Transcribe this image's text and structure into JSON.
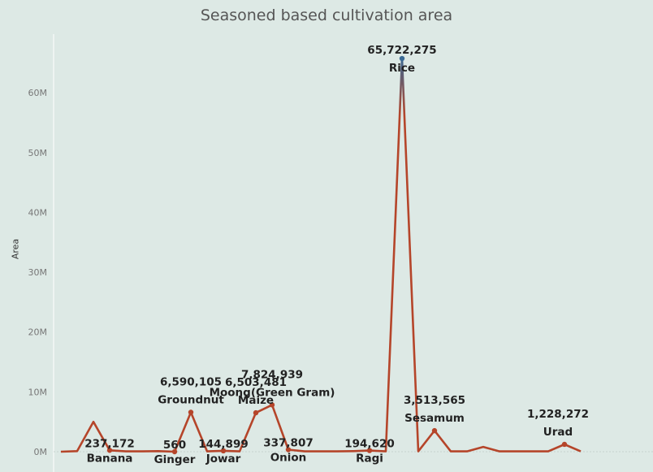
{
  "chart_data": {
    "type": "line",
    "title": "Seasoned based cultivation area",
    "ylabel": "Area",
    "xlabel": "",
    "ylim": [
      0,
      66000000
    ],
    "y_ticks": [
      {
        "value": 0,
        "label": "0M"
      },
      {
        "value": 10000000,
        "label": "10M"
      },
      {
        "value": 20000000,
        "label": "20M"
      },
      {
        "value": 30000000,
        "label": "30M"
      },
      {
        "value": 40000000,
        "label": "40M"
      },
      {
        "value": 50000000,
        "label": "50M"
      },
      {
        "value": 60000000,
        "label": "60M"
      }
    ],
    "grid": false,
    "colors": {
      "low": "#b5452a",
      "high": "#3a6a94"
    },
    "values": [
      0,
      100000,
      5000000,
      237172,
      50000,
      50000,
      100000,
      560,
      6590105,
      50000,
      144899,
      50000,
      6503481,
      7824939,
      337807,
      50000,
      50000,
      50000,
      100000,
      194620,
      50000,
      65722275,
      50000,
      3513565,
      50000,
      50000,
      800000,
      50000,
      50000,
      50000,
      50000,
      1228272,
      50000
    ],
    "labeled_points": [
      {
        "index": 3,
        "value_label": "237,172",
        "crop": "Banana"
      },
      {
        "index": 7,
        "value_label": "560",
        "crop": "Ginger"
      },
      {
        "index": 8,
        "value_label": "6,590,105",
        "crop": "Groundnut"
      },
      {
        "index": 10,
        "value_label": "144,899",
        "crop": "Jowar"
      },
      {
        "index": 12,
        "value_label": "6,503,481",
        "crop": "Maize"
      },
      {
        "index": 13,
        "value_label": "7,824,939",
        "crop": "Moong(Green Gram)"
      },
      {
        "index": 14,
        "value_label": "337,807",
        "crop": "Onion"
      },
      {
        "index": 19,
        "value_label": "194,620",
        "crop": "Ragi"
      },
      {
        "index": 21,
        "value_label": "65,722,275",
        "crop": "Rice"
      },
      {
        "index": 23,
        "value_label": "3,513,565",
        "crop": "Sesamum"
      },
      {
        "index": 31,
        "value_label": "1,228,272",
        "crop": "Urad"
      }
    ]
  }
}
